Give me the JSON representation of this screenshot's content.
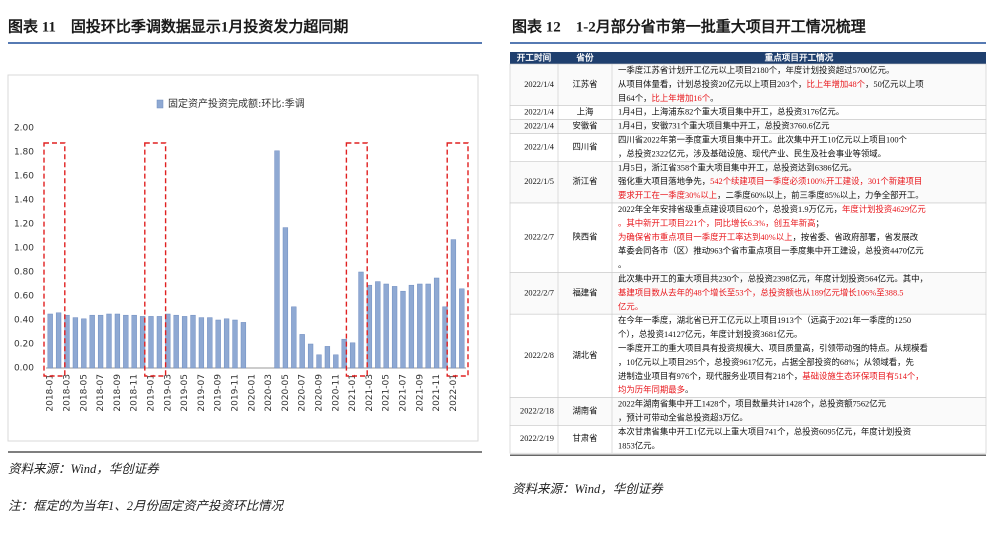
{
  "left": {
    "title": "图表 11　固投环比季调数据显示1月投资发力超同期",
    "source": "资料来源：Wind，华创证券",
    "note": "注：框定的为当年1、2月份固定资产投资环比情况"
  },
  "chart_data": {
    "type": "bar",
    "categories": [
      "2018-01",
      null,
      "2018-03",
      null,
      "2018-05",
      null,
      "2018-07",
      null,
      "2018-09",
      null,
      "2018-11",
      null,
      "2019-01",
      null,
      "2019-03",
      null,
      "2019-05",
      null,
      "2019-07",
      null,
      "2019-09",
      null,
      "2019-11",
      null,
      "2020-01",
      null,
      "2020-03",
      null,
      "2020-05",
      null,
      "2020-07",
      null,
      "2020-09",
      null,
      "2020-11",
      null,
      "2021-01",
      null,
      "2021-03",
      null,
      "2021-05",
      null,
      "2021-07",
      null,
      "2021-09",
      null,
      "2021-11",
      null,
      "2022-01",
      null
    ],
    "series": [
      {
        "name": "固定资产投资完成额:环比:季调",
        "color": "#8fa9d3",
        "values": [
          0.45,
          0.46,
          0.44,
          0.42,
          0.41,
          0.44,
          0.44,
          0.45,
          0.45,
          0.44,
          0.44,
          0.43,
          0.43,
          0.43,
          0.45,
          0.44,
          0.43,
          0.44,
          0.42,
          0.42,
          0.4,
          0.41,
          0.4,
          0.38,
          null,
          null,
          null,
          1.81,
          1.17,
          0.51,
          0.28,
          0.2,
          0.11,
          0.18,
          0.11,
          0.24,
          0.21,
          0.8,
          0.69,
          0.72,
          0.7,
          0.68,
          0.64,
          0.69,
          0.7,
          0.7,
          0.75,
          0.51,
          1.07,
          0.66
        ]
      }
    ],
    "ylim": [
      0,
      2
    ],
    "yticks": [
      {
        "value": 0,
        "label": "0.00"
      },
      {
        "value": 0.2,
        "label": "0.20"
      },
      {
        "value": 0.4,
        "label": "0.40"
      },
      {
        "value": 0.6,
        "label": "0.60"
      },
      {
        "value": 0.8,
        "label": "0.80"
      },
      {
        "value": 1,
        "label": "1.00"
      },
      {
        "value": 1.2,
        "label": "1.20"
      },
      {
        "value": 1.4,
        "label": "1.40"
      },
      {
        "value": 1.6,
        "label": "1.60"
      },
      {
        "value": 1.8,
        "label": "1.80"
      },
      {
        "value": 2,
        "label": "2.00"
      }
    ],
    "grid": false
  },
  "right": {
    "title": "图表 12　1-2月部分省市第一批重大项目开工情况梳理",
    "source": "资料来源：Wind，华创证券",
    "table": {
      "header": [
        "开工时间",
        "省份",
        "重点项目开工情况"
      ],
      "rows": [
        {
          "date": "2022/1/4",
          "province": "江苏省",
          "lines": [
            [
              "一季度江苏省计划开工亿元以上项目2180个，年度计划投资超过5700亿元。"
            ],
            [
              "从项目体量看，计划总投资20亿元以上项目203个，",
              {
                "text": "比上年增加48个",
                "color": "#e8161b"
              },
              "，50亿元以上项"
            ],
            [
              "目64个，",
              {
                "text": "比上年增加16个",
                "color": "#e8161b"
              },
              "。"
            ]
          ]
        },
        {
          "date": "2022/1/4",
          "province": "上海",
          "lines": [
            [
              "1月4日，上海浦东82个重大项目集中开工，总投资3176亿元。"
            ]
          ]
        },
        {
          "date": "2022/1/4",
          "province": "安徽省",
          "lines": [
            [
              "1月4日，安徽731个重大项目集中开工，总投资3760.6亿元"
            ]
          ]
        },
        {
          "date": "2022/1/4",
          "province": "四川省",
          "lines": [
            [
              "四川省2022年第一季度重大项目集中开工。此次集中开工10亿元以上项目100个"
            ],
            [
              "，总投资2322亿元，涉及基础设施、现代产业、民生及社会事业等领域。"
            ]
          ]
        },
        {
          "date": "2022/1/5",
          "province": "浙江省",
          "lines": [
            [
              "1月5日，浙江省358个重大项目集中开工，总投资达到6386亿元。"
            ],
            [
              "强化重大项目落地争先，",
              {
                "text": "542个续建项目一季度必须100%开工建设，301个新建项目",
                "color": "#e8161b"
              }
            ],
            [
              {
                "text": "要求开工在一季度30%以上",
                "color": "#e8161b"
              },
              "，二季度60%以上，前三季度85%以上，力争全部开工。"
            ]
          ]
        },
        {
          "date": "2022/2/7",
          "province": "陕西省",
          "lines": [
            [
              "2022年全年安排省级重点建设项目620个，总投资1.9万亿元，",
              {
                "text": "年度计划投资4629亿元",
                "color": "#e8161b"
              }
            ],
            [
              {
                "text": "。其中新开工项目221个，同比增长6.3%，创五年新高",
                "color": "#e8161b"
              },
              "；"
            ],
            [
              {
                "text": "为确保省市重点项目一季度开工率达到40%以上",
                "color": "#e8161b"
              },
              "，按省委、省政府部署，省发展改"
            ],
            [
              "革委会同各市（区）推动963个省市重点项目一季度集中开工建设，总投资4470亿元"
            ],
            [
              "。"
            ]
          ]
        },
        {
          "date": "2022/2/7",
          "province": "福建省",
          "lines": [
            [
              "此次集中开工的重大项目共230个，总投资2398亿元，年度计划投资564亿元。其中，"
            ],
            [
              {
                "text": "基建项目数从去年的48个增长至53个，总投资额也从189亿元增长106%至388.5",
                "color": "#e8161b"
              }
            ],
            [
              {
                "text": "亿元。",
                "color": "#e8161b"
              }
            ]
          ]
        },
        {
          "date": "2022/2/8",
          "province": "湖北省",
          "lines": [
            [
              "在今年一季度，湖北省已开工亿元以上项目1913个（远高于2021年一季度的1250"
            ],
            [
              "个），总投资14127亿元，年度计划投资3681亿元。"
            ],
            [
              "一季度开工的重大项目具有投资规模大、项目质量高，引领带动强的特点。从规模看"
            ],
            [
              "，10亿元以上项目295个，总投资9617亿元，占据全部投资的68%；从领域看，先"
            ],
            [
              "进制造业项目有976个，现代服务业项目有218个，",
              {
                "text": "基础设施生态环保项目有514个，",
                "color": "#e8161b"
              }
            ],
            [
              {
                "text": "均为历年同期最多",
                "color": "#e8161b"
              },
              "。"
            ]
          ]
        },
        {
          "date": "2022/2/18",
          "province": "湖南省",
          "lines": [
            [
              "2022年湖南省集中开工1428个，项目数量共计1428个，总投资额7562亿元"
            ],
            [
              "，预计可带动全省总投资超3万亿。"
            ]
          ]
        },
        {
          "date": "2022/2/19",
          "province": "甘肃省",
          "lines": [
            [
              "本次甘肃省集中开工1亿元以上重大项目741个，总投资6095亿元，年度计划投资"
            ],
            [
              "1853亿元。"
            ]
          ]
        }
      ]
    }
  }
}
